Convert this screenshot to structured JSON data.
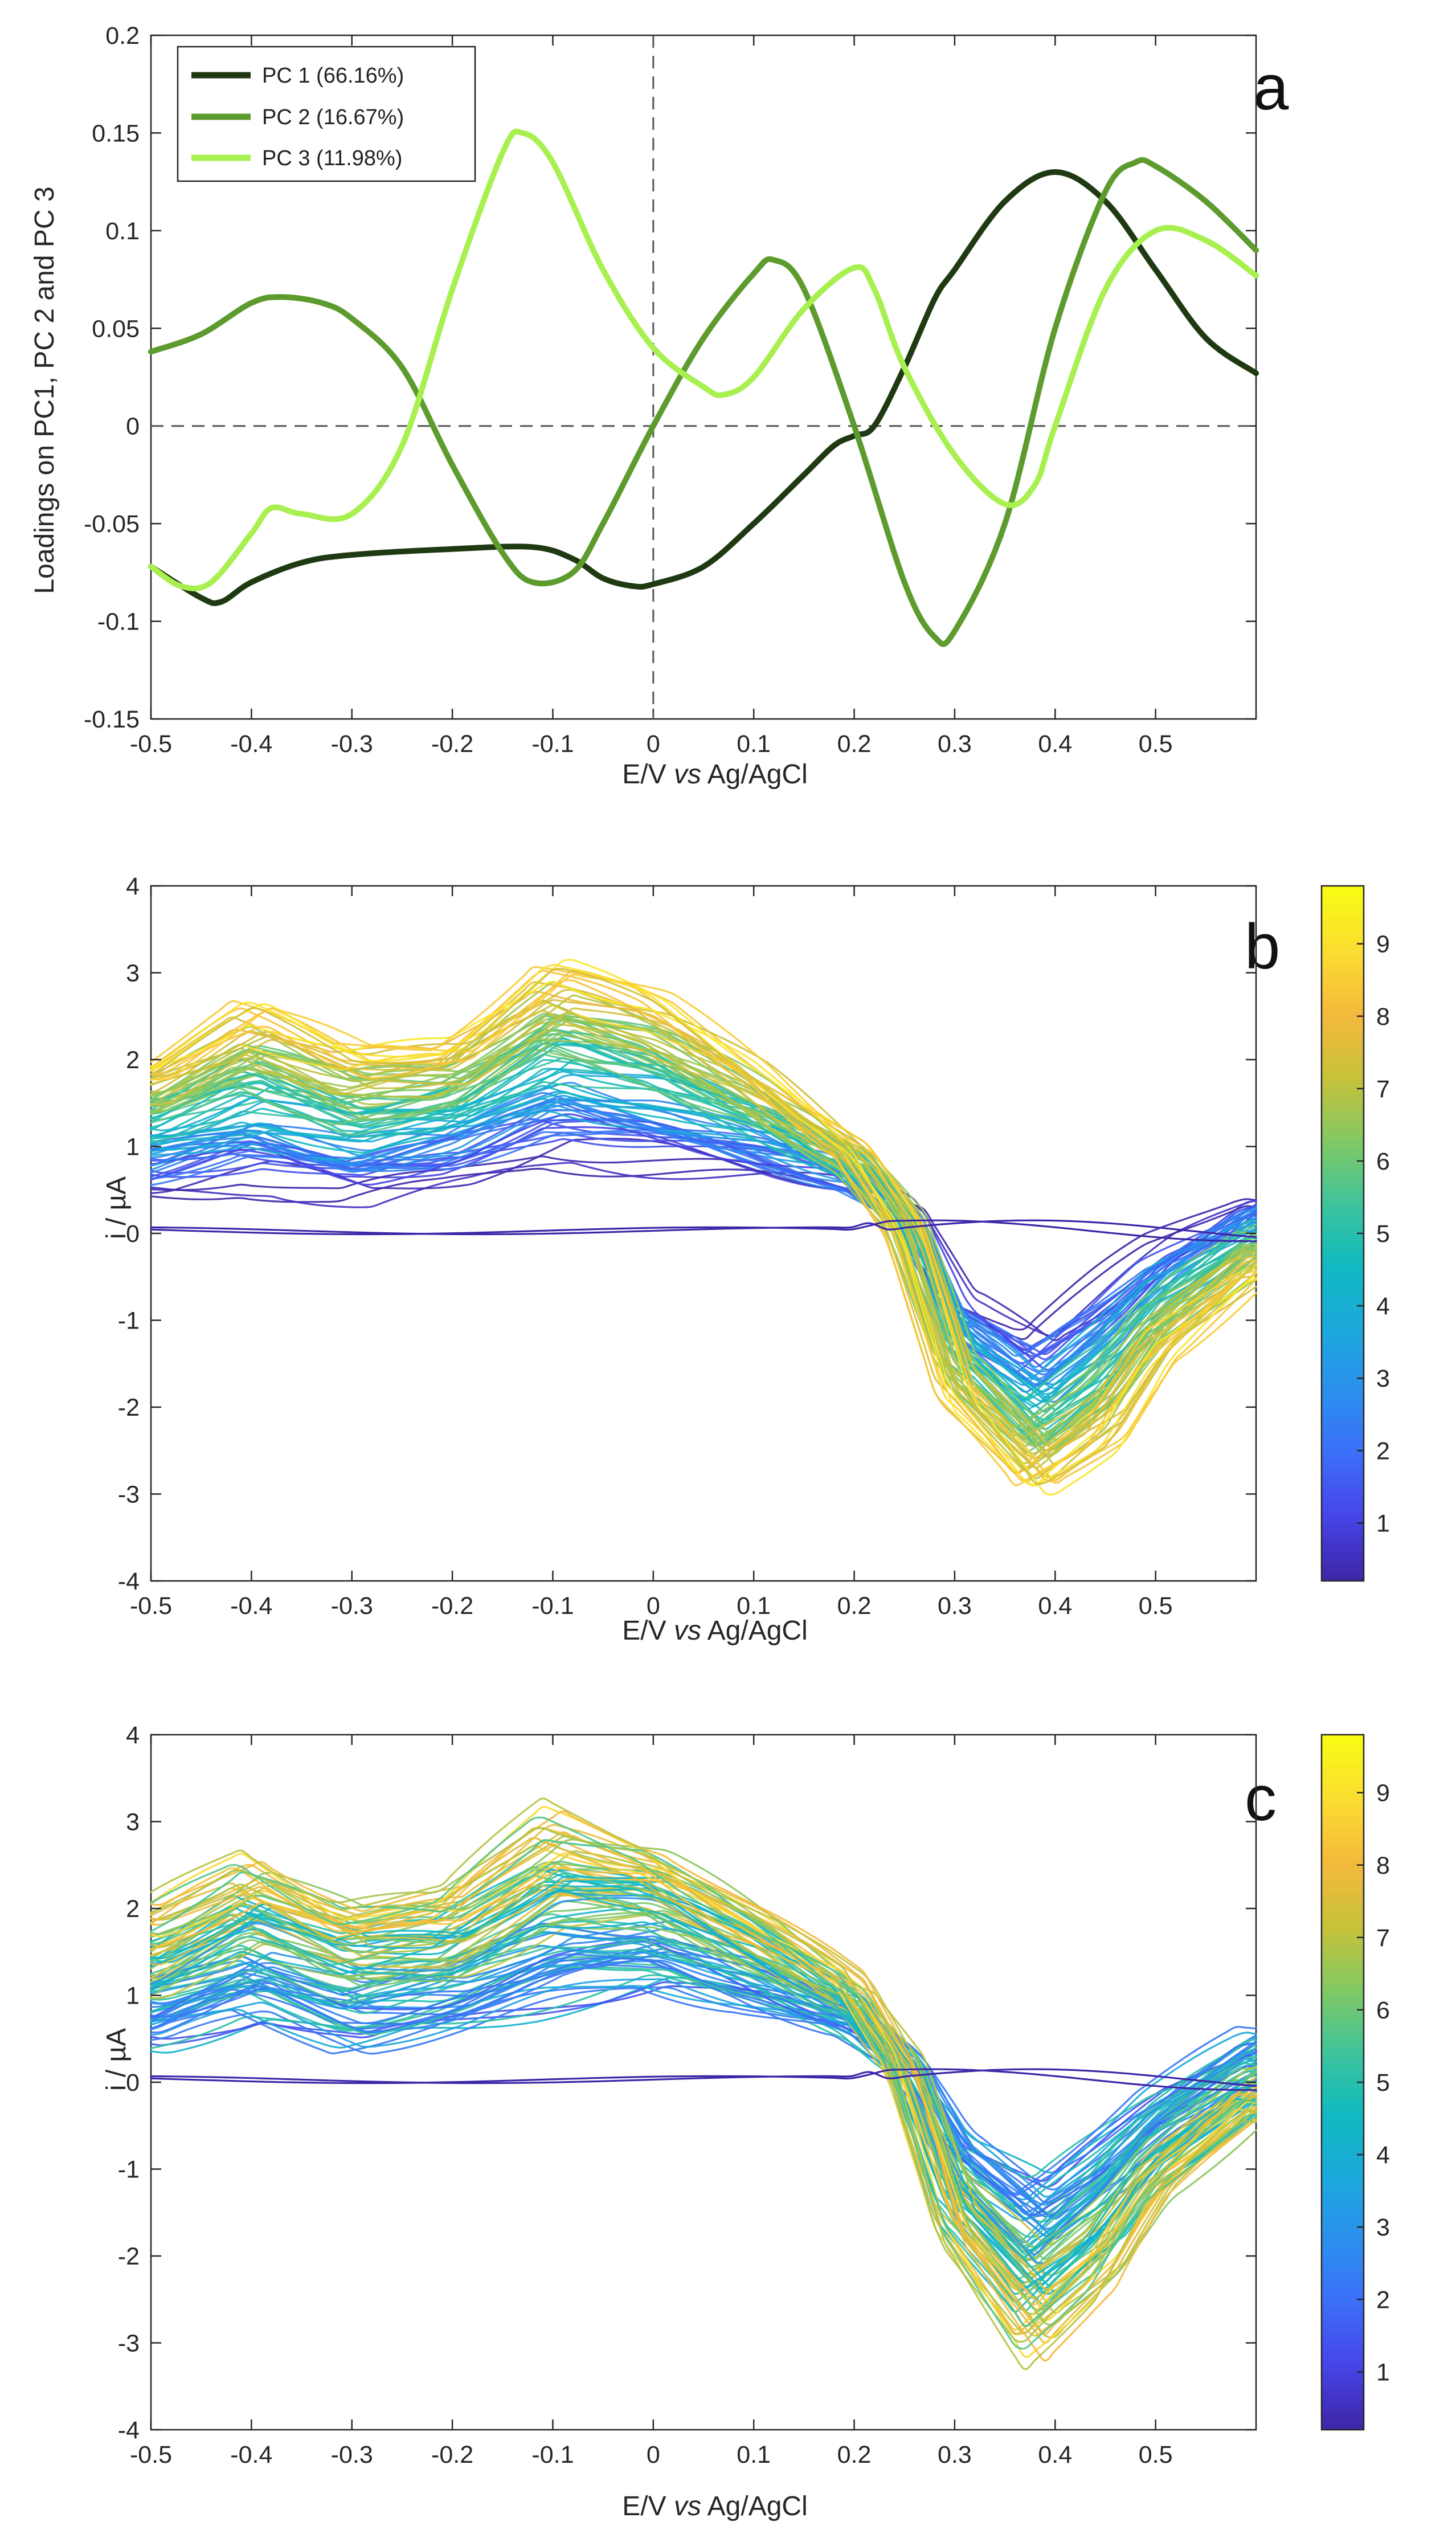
{
  "chart_data": [
    {
      "panel": "a",
      "type": "line",
      "xlabel_parts": [
        "E/V ",
        "vs",
        " Ag/AgCl"
      ],
      "ylabel": "Loadings on PC1, PC 2 and PC 3",
      "xlim": [
        -0.5,
        0.6
      ],
      "ylim": [
        -0.15,
        0.2
      ],
      "xticks": [
        -0.5,
        -0.4,
        -0.3,
        -0.2,
        -0.1,
        0,
        0.1,
        0.2,
        0.3,
        0.4,
        0.5
      ],
      "xtick_labels": [
        "-0.5",
        "-0.4",
        "-0.3",
        "-0.2",
        "-0.1",
        "0",
        "0.1",
        "0.2",
        "0.3",
        "0.4",
        "0.5"
      ],
      "yticks": [
        -0.15,
        -0.1,
        -0.05,
        0,
        0.05,
        0.1,
        0.15,
        0.2
      ],
      "ytick_labels": [
        "-0.15",
        "-0.1",
        "-0.05",
        "0",
        "0.05",
        "0.1",
        "0.15",
        "0.2"
      ],
      "reference_lines": {
        "x": 0,
        "y": 0
      },
      "legend_position": "top-left",
      "series": [
        {
          "name": "PC 1 (66.16%)",
          "color": "#1f3a12",
          "x": [
            -0.5,
            -0.45,
            -0.43,
            -0.4,
            -0.35,
            -0.3,
            -0.2,
            -0.12,
            -0.08,
            -0.05,
            -0.02,
            0,
            0.05,
            0.1,
            0.15,
            0.18,
            0.2,
            0.22,
            0.25,
            0.28,
            0.3,
            0.35,
            0.4,
            0.45,
            0.5,
            0.55,
            0.6
          ],
          "y": [
            -0.072,
            -0.088,
            -0.09,
            -0.08,
            -0.07,
            -0.066,
            -0.063,
            -0.062,
            -0.068,
            -0.078,
            -0.082,
            -0.081,
            -0.072,
            -0.05,
            -0.025,
            -0.01,
            -0.005,
            0.0,
            0.03,
            0.065,
            0.08,
            0.115,
            0.13,
            0.115,
            0.08,
            0.045,
            0.027
          ]
        },
        {
          "name": "PC 2 (16.67%)",
          "color": "#5e9b2e",
          "x": [
            -0.5,
            -0.45,
            -0.4,
            -0.37,
            -0.33,
            -0.3,
            -0.25,
            -0.2,
            -0.15,
            -0.12,
            -0.08,
            -0.05,
            0,
            0.05,
            0.1,
            0.12,
            0.15,
            0.2,
            0.25,
            0.28,
            0.3,
            0.35,
            0.4,
            0.45,
            0.48,
            0.5,
            0.55,
            0.6
          ],
          "y": [
            0.038,
            0.047,
            0.063,
            0.066,
            0.063,
            0.055,
            0.03,
            -0.02,
            -0.065,
            -0.08,
            -0.075,
            -0.05,
            0.0,
            0.045,
            0.078,
            0.085,
            0.07,
            0.0,
            -0.08,
            -0.108,
            -0.105,
            -0.05,
            0.05,
            0.12,
            0.135,
            0.133,
            0.115,
            0.09
          ]
        },
        {
          "name": "PC 3 (11.98%)",
          "color": "#a8f050",
          "x": [
            -0.5,
            -0.47,
            -0.44,
            -0.4,
            -0.38,
            -0.35,
            -0.3,
            -0.25,
            -0.2,
            -0.15,
            -0.13,
            -0.1,
            -0.05,
            0,
            0.05,
            0.07,
            0.1,
            0.15,
            0.2,
            0.22,
            0.25,
            0.3,
            0.35,
            0.38,
            0.4,
            0.45,
            0.5,
            0.55,
            0.6
          ],
          "y": [
            -0.072,
            -0.082,
            -0.08,
            -0.055,
            -0.042,
            -0.045,
            -0.045,
            -0.01,
            0.07,
            0.14,
            0.15,
            0.135,
            0.08,
            0.04,
            0.02,
            0.016,
            0.025,
            0.06,
            0.081,
            0.07,
            0.03,
            -0.015,
            -0.04,
            -0.03,
            0.0,
            0.07,
            0.1,
            0.095,
            0.077
          ]
        }
      ]
    },
    {
      "panel": "b",
      "type": "line",
      "description_series": "family of voltammograms colored by colorbar value",
      "xlabel_parts": [
        "E/V ",
        "vs",
        " Ag/AgCl"
      ],
      "ylabel": "i / µA",
      "xlim": [
        -0.5,
        0.6
      ],
      "ylim": [
        -4,
        4
      ],
      "xticks": [
        -0.5,
        -0.4,
        -0.3,
        -0.2,
        -0.1,
        0,
        0.1,
        0.2,
        0.3,
        0.4,
        0.5
      ],
      "xtick_labels": [
        "-0.5",
        "-0.4",
        "-0.3",
        "-0.2",
        "-0.1",
        "0",
        "0.1",
        "0.2",
        "0.3",
        "0.4",
        "0.5"
      ],
      "yticks": [
        -4,
        -3,
        -2,
        -1,
        0,
        1,
        2,
        3,
        4
      ],
      "ytick_labels": [
        "-4",
        "-3",
        "-2",
        "-1",
        "0",
        "1",
        "2",
        "3",
        "4"
      ],
      "colorbar": {
        "ticks": [
          1,
          2,
          3,
          4,
          5,
          6,
          7,
          8,
          9
        ],
        "tick_labels": [
          "1",
          "2",
          "3",
          "4",
          "5",
          "6",
          "7",
          "8",
          "9"
        ],
        "range": [
          0.2,
          9.8
        ],
        "colormap": "parula"
      },
      "baseline_curves": 2,
      "envelope": {
        "low": {
          "x": [
            -0.5,
            -0.4,
            -0.3,
            -0.2,
            -0.1,
            0,
            0.1,
            0.2,
            0.25,
            0.3,
            0.38,
            0.45,
            0.5,
            0.6
          ],
          "y": [
            0.4,
            0.5,
            0.3,
            0.5,
            0.8,
            0.7,
            0.6,
            0.5,
            0.3,
            -0.6,
            -1.1,
            -0.5,
            -0.1,
            0.5
          ]
        },
        "high": {
          "x": [
            -0.5,
            -0.4,
            -0.3,
            -0.2,
            -0.1,
            0,
            0.1,
            0.2,
            0.25,
            0.3,
            0.38,
            0.45,
            0.5,
            0.6
          ],
          "y": [
            2.0,
            2.7,
            2.2,
            2.3,
            3.2,
            2.8,
            2.0,
            1.0,
            0.0,
            -2.0,
            -3.1,
            -2.5,
            -1.5,
            -0.5
          ]
        }
      }
    },
    {
      "panel": "c",
      "type": "line",
      "description_series": "family of voltammograms colored by colorbar value",
      "xlabel_parts": [
        "E/V ",
        "vs",
        " Ag/AgCl"
      ],
      "ylabel": "i / µA",
      "xlim": [
        -0.5,
        0.6
      ],
      "ylim": [
        -4,
        4
      ],
      "xticks": [
        -0.5,
        -0.4,
        -0.3,
        -0.2,
        -0.1,
        0,
        0.1,
        0.2,
        0.3,
        0.4,
        0.5
      ],
      "xtick_labels": [
        "-0.5",
        "-0.4",
        "-0.3",
        "-0.2",
        "-0.1",
        "0",
        "0.1",
        "0.2",
        "0.3",
        "0.4",
        "0.5"
      ],
      "yticks": [
        -4,
        -3,
        -2,
        -1,
        0,
        1,
        2,
        3,
        4
      ],
      "ytick_labels": [
        "-4",
        "-3",
        "-2",
        "-1",
        "0",
        "1",
        "2",
        "3",
        "4"
      ],
      "colorbar": {
        "ticks": [
          1,
          2,
          3,
          4,
          5,
          6,
          7,
          8,
          9
        ],
        "tick_labels": [
          "1",
          "2",
          "3",
          "4",
          "5",
          "6",
          "7",
          "8",
          "9"
        ],
        "range": [
          0.2,
          9.8
        ],
        "colormap": "parula"
      },
      "baseline_curves": 2,
      "envelope": {
        "low": {
          "x": [
            -0.5,
            -0.4,
            -0.3,
            -0.2,
            -0.1,
            0,
            0.1,
            0.2,
            0.25,
            0.3,
            0.38,
            0.45,
            0.5,
            0.6
          ],
          "y": [
            0.3,
            0.6,
            0.3,
            0.5,
            0.7,
            1.0,
            0.8,
            0.5,
            0.2,
            -0.5,
            -1.0,
            -0.4,
            0.0,
            0.6
          ]
        },
        "high": {
          "x": [
            -0.5,
            -0.4,
            -0.3,
            -0.2,
            -0.1,
            0,
            0.1,
            0.2,
            0.25,
            0.3,
            0.38,
            0.45,
            0.5,
            0.6
          ],
          "y": [
            2.0,
            2.7,
            2.1,
            2.2,
            3.2,
            2.8,
            2.0,
            1.2,
            0.2,
            -1.8,
            -3.2,
            -2.5,
            -1.5,
            -0.4
          ]
        }
      }
    }
  ],
  "colormap_stops": [
    "#3e26a8",
    "#4745e8",
    "#3c6ff8",
    "#2a90ee",
    "#1ca9dc",
    "#10bac0",
    "#3fc49a",
    "#84c862",
    "#c8c23a",
    "#f5b93c",
    "#fadd32",
    "#f9fb14"
  ]
}
